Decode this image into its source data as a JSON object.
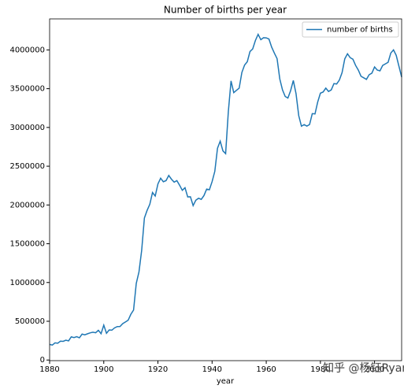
{
  "chart_data": {
    "type": "line",
    "title": "Number of births per year",
    "x_label": "year",
    "x": [
      1880,
      1881,
      1882,
      1883,
      1884,
      1885,
      1886,
      1887,
      1888,
      1889,
      1890,
      1891,
      1892,
      1893,
      1894,
      1895,
      1896,
      1897,
      1898,
      1899,
      1900,
      1901,
      1902,
      1903,
      1904,
      1905,
      1906,
      1907,
      1908,
      1909,
      1910,
      1911,
      1912,
      1913,
      1914,
      1915,
      1916,
      1917,
      1918,
      1919,
      1920,
      1921,
      1922,
      1923,
      1924,
      1925,
      1926,
      1927,
      1928,
      1929,
      1930,
      1931,
      1932,
      1933,
      1934,
      1935,
      1936,
      1937,
      1938,
      1939,
      1940,
      1941,
      1942,
      1943,
      1944,
      1945,
      1946,
      1947,
      1948,
      1949,
      1950,
      1951,
      1952,
      1953,
      1954,
      1955,
      1956,
      1957,
      1958,
      1959,
      1960,
      1961,
      1962,
      1963,
      1964,
      1965,
      1966,
      1967,
      1968,
      1969,
      1970,
      1971,
      1972,
      1973,
      1974,
      1975,
      1976,
      1977,
      1978,
      1979,
      1980,
      1981,
      1982,
      1983,
      1984,
      1985,
      1986,
      1987,
      1988,
      1989,
      1990,
      1991,
      1992,
      1993,
      1994,
      1995,
      1996,
      1997,
      1998,
      1999,
      2000,
      2001,
      2002,
      2003,
      2004,
      2005,
      2006,
      2007,
      2008,
      2009,
      2010
    ],
    "series": [
      {
        "name": "number of births",
        "color": "#1f77b4",
        "values": [
          201484,
          192700,
          221537,
          216952,
          243468,
          240855,
          255317,
          247394,
          299473,
          288946,
          301401,
          286673,
          334378,
          325218,
          338414,
          350680,
          358390,
          351828,
          383735,
          339876,
          450232,
          345171,
          387640,
          385310,
          415062,
          431342,
          432786,
          469474,
          491123,
          513624,
          589868,
          644246,
          988022,
          1137254,
          1416071,
          1831844,
          1929839,
          2009037,
          2160497,
          2115127,
          2271606,
          2345024,
          2299190,
          2314212,
          2381226,
          2331970,
          2294630,
          2314346,
          2254988,
          2189124,
          2222058,
          2104079,
          2105996,
          1991989,
          2061766,
          2086792,
          2072548,
          2121574,
          2205219,
          2195931,
          2300858,
          2433124,
          2731634,
          2822802,
          2698064,
          2662064,
          3203806,
          3600183,
          3448812,
          3478948,
          3506406,
          3708823,
          3804936,
          3847838,
          3979233,
          4012937,
          4122157,
          4201202,
          4131806,
          4157022,
          4155187,
          4140232,
          4036056,
          3958733,
          3887614,
          3625542,
          3484218,
          3399758,
          3378838,
          3474627,
          3605941,
          3435925,
          3151813,
          3015946,
          3036933,
          3017706,
          3037412,
          3178216,
          3173810,
          3327886,
          3441590,
          3456806,
          3507134,
          3464142,
          3484130,
          3565624,
          3560424,
          3611416,
          3706470,
          3884780,
          3950000,
          3900000,
          3880000,
          3800000,
          3740000,
          3660000,
          3640000,
          3620000,
          3680000,
          3700000,
          3780000,
          3740000,
          3730000,
          3800000,
          3820000,
          3840000,
          3960000,
          4000000,
          3930000,
          3790000,
          3650000
        ]
      }
    ],
    "xlim": [
      1880,
      2010
    ],
    "xticks": [
      1880,
      1900,
      1920,
      1940,
      1960,
      1980,
      2000
    ],
    "ylim": [
      -8000,
      4400000
    ],
    "yticks": [
      0,
      500000,
      1000000,
      1500000,
      2000000,
      2500000,
      3000000,
      3500000,
      4000000
    ],
    "legend": "upper right",
    "grid": false,
    "watermark": "知乎 @杨钰Ryan"
  }
}
